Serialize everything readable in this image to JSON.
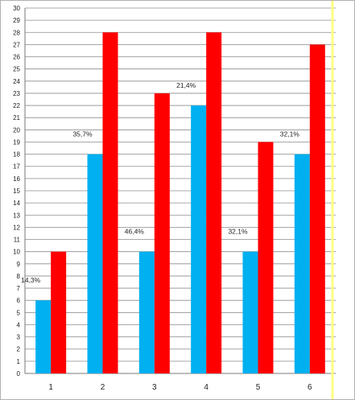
{
  "chart_data": {
    "type": "bar",
    "categories": [
      "1",
      "2",
      "3",
      "4",
      "5",
      "6"
    ],
    "series": [
      {
        "values": [
          6,
          18,
          10,
          22,
          10,
          18
        ],
        "color": "#00b0f0"
      },
      {
        "values": [
          10,
          28,
          23,
          28,
          19,
          27
        ],
        "color": "#ff0000"
      }
    ],
    "data_labels": [
      "14,3%",
      "35,7%",
      "46,4%",
      "21,4%",
      "32,1%",
      "32,1%"
    ],
    "ylim": [
      0,
      30
    ],
    "y_tick_step": 1,
    "grid": true,
    "legend": "none",
    "title": "",
    "xlabel": "",
    "ylabel": "",
    "highlight_line_color": "#ffff80"
  }
}
